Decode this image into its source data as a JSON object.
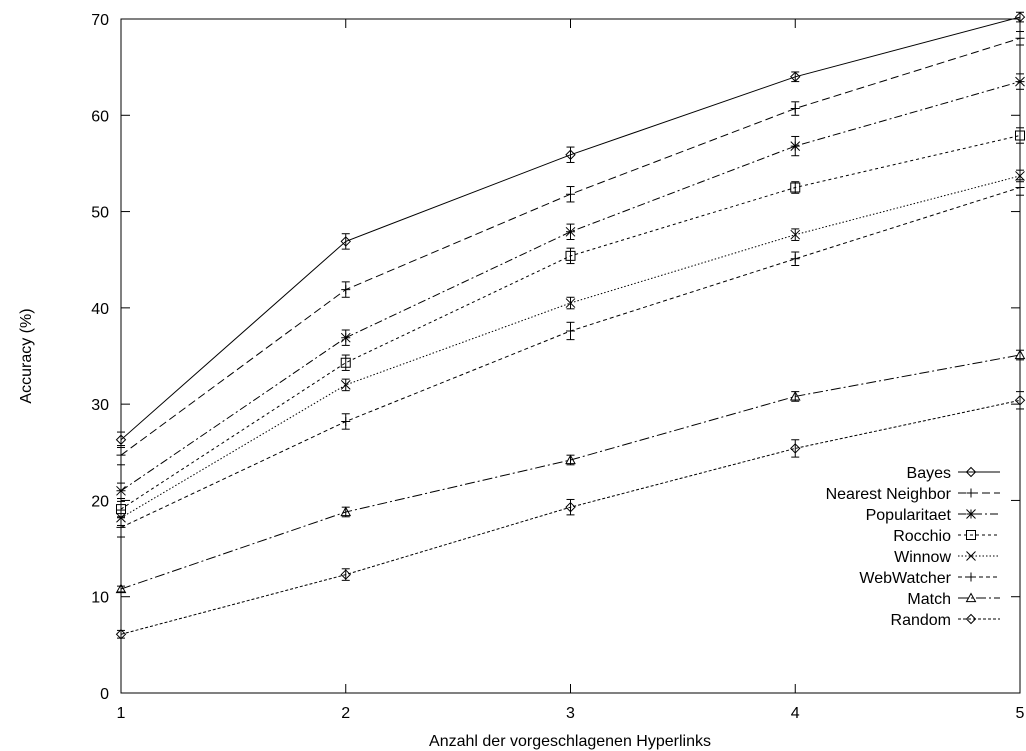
{
  "chart_data": {
    "type": "line",
    "title": "",
    "xlabel": "Anzahl der vorgeschlagenen Hyperlinks",
    "ylabel": "Accuracy (%)",
    "x": [
      1,
      2,
      3,
      4,
      5
    ],
    "xlim": [
      1,
      5
    ],
    "ylim": [
      0,
      70
    ],
    "xticks": [
      "1",
      "2",
      "3",
      "4",
      "5"
    ],
    "yticks": [
      "0",
      "10",
      "20",
      "30",
      "40",
      "50",
      "60",
      "70"
    ],
    "grid": false,
    "legend_position": "bottom-right",
    "series": [
      {
        "name": "Bayes",
        "marker": "diamond",
        "dash": "",
        "values": [
          26.3,
          46.9,
          55.9,
          64.0,
          70.2
        ],
        "errors": [
          0.8,
          0.8,
          0.8,
          0.5,
          0.5
        ]
      },
      {
        "name": "Nearest Neighbor",
        "marker": "plus",
        "dash": "8 4",
        "values": [
          24.7,
          41.9,
          51.8,
          60.7,
          68.0
        ],
        "errors": [
          1.0,
          0.8,
          0.8,
          0.7,
          0.7
        ]
      },
      {
        "name": "Popularitaet",
        "marker": "star",
        "dash": "8 3 2 3",
        "values": [
          21.0,
          36.9,
          47.9,
          56.8,
          63.5
        ],
        "errors": [
          0.8,
          0.8,
          0.8,
          1.0,
          0.8
        ]
      },
      {
        "name": "Rocchio",
        "marker": "square",
        "dash": "3 3",
        "values": [
          19.1,
          34.3,
          45.4,
          52.5,
          57.9
        ],
        "errors": [
          0.8,
          0.8,
          0.8,
          0.6,
          0.8
        ]
      },
      {
        "name": "Winnow",
        "marker": "cross",
        "dash": "1.5 2",
        "values": [
          18.2,
          32.0,
          40.5,
          47.6,
          53.7
        ],
        "errors": [
          0.8,
          0.6,
          0.6,
          0.6,
          0.6
        ]
      },
      {
        "name": "WebWatcher",
        "marker": "plus",
        "dash": "4 3",
        "values": [
          17.2,
          28.2,
          37.6,
          45.1,
          52.5
        ],
        "errors": [
          1.0,
          0.8,
          0.9,
          0.7,
          0.8
        ]
      },
      {
        "name": "Match",
        "marker": "triangle",
        "dash": "10 3 2 3",
        "values": [
          10.8,
          18.8,
          24.2,
          30.8,
          35.1
        ],
        "errors": [
          0.3,
          0.5,
          0.5,
          0.5,
          0.5
        ]
      },
      {
        "name": "Random",
        "marker": "diamond",
        "dash": "3 2",
        "values": [
          6.1,
          12.3,
          19.3,
          25.4,
          30.4
        ],
        "errors": [
          0.4,
          0.6,
          0.8,
          0.9,
          0.9
        ]
      }
    ]
  }
}
